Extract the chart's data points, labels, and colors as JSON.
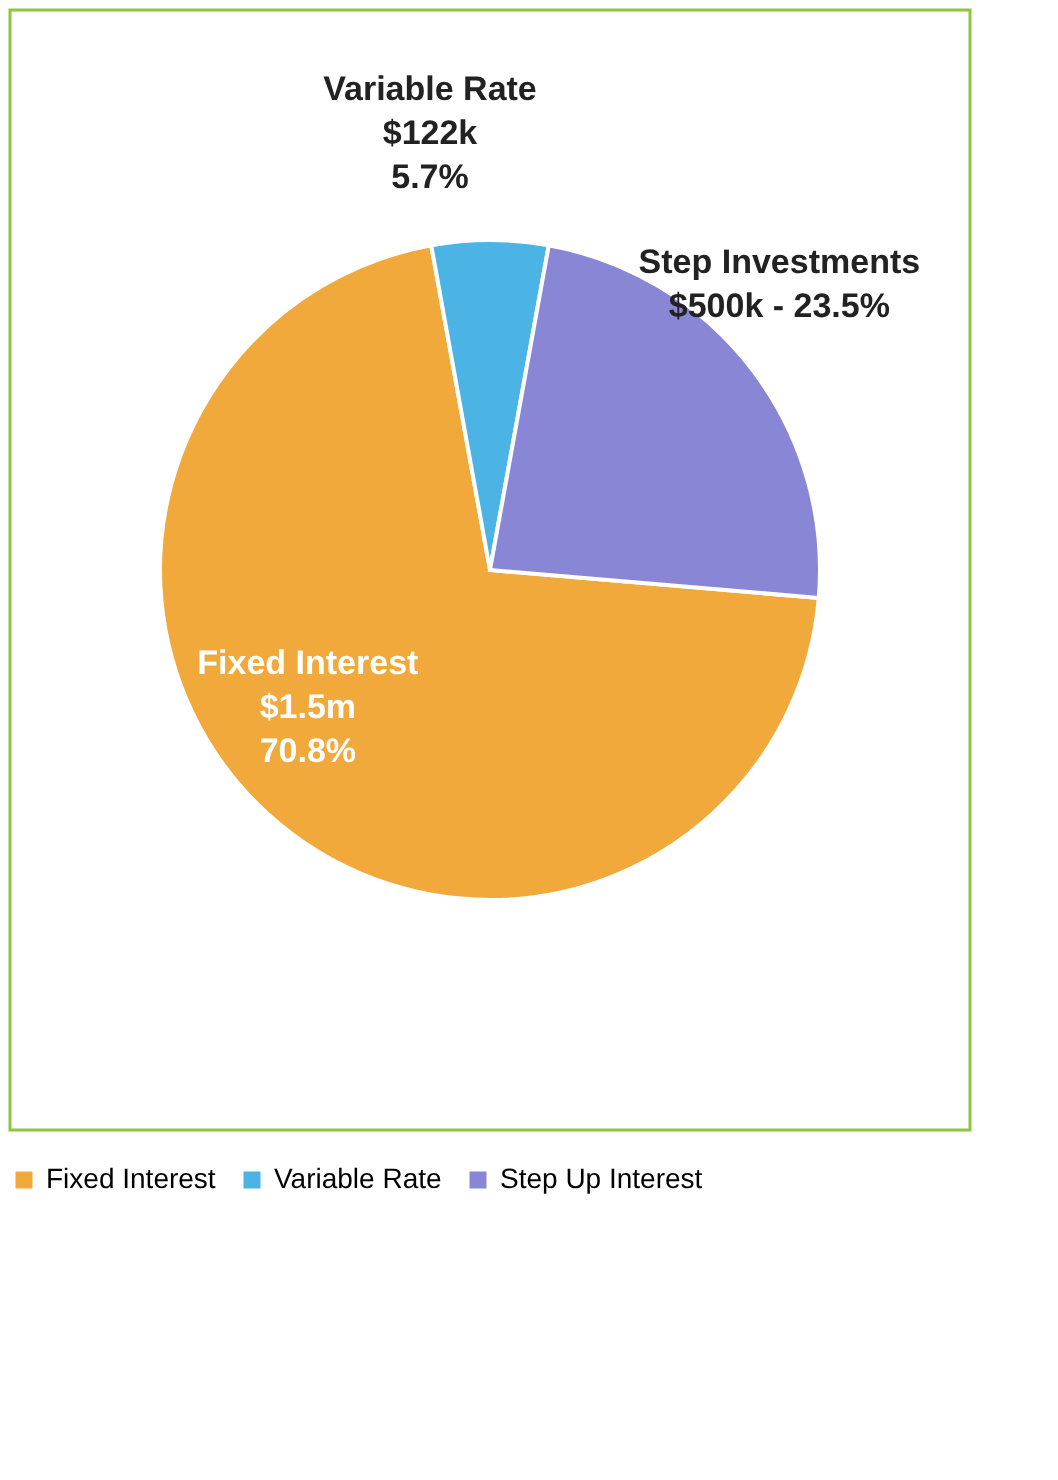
{
  "chart_data": {
    "type": "pie",
    "categories": [
      "Fixed Interest",
      "Variable Rate",
      "Step Up Interest"
    ],
    "values": [
      70.8,
      5.7,
      23.5
    ],
    "colors": [
      "#f2a93b",
      "#4cb4e4",
      "#8a86d6"
    ],
    "legend": "bottom",
    "annotations": [
      "Fixed Interest\n$1.5m\n70.8%",
      "Variable Rate\n$122k\n5.7%",
      "Step Investments\n$500k - 23.5%"
    ]
  }
}
